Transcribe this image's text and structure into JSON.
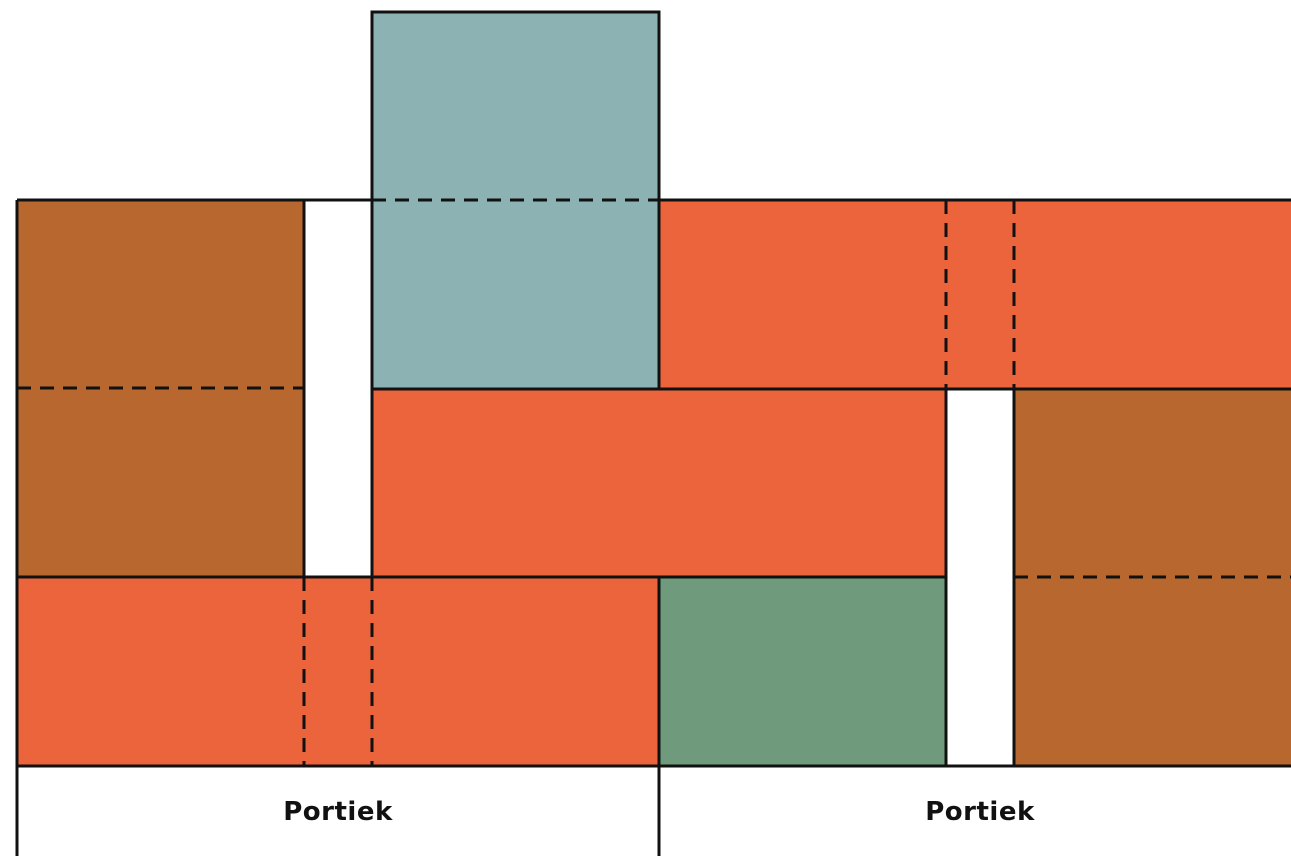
{
  "colors": {
    "brown": "#B8682E",
    "orange": "#EC643C",
    "blue_gray": "#8DB2B4",
    "green": "#6F9A7B",
    "outline": "#111111",
    "background": "#FFFFFF"
  },
  "labels": {
    "portiek_left": "Portiek",
    "portiek_right": "Portiek"
  }
}
